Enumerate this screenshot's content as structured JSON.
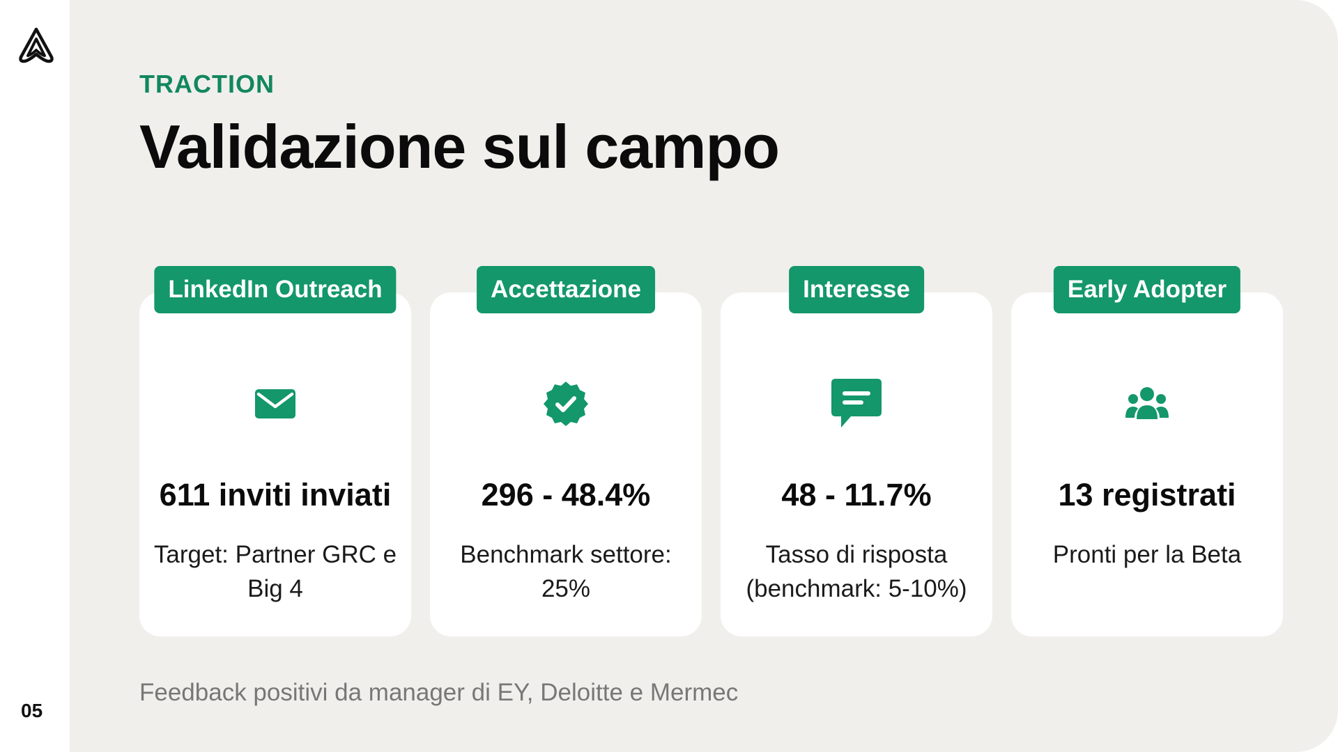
{
  "page": {
    "number": "05",
    "eyebrow": "TRACTION",
    "title": "Validazione sul campo",
    "footer": "Feedback positivi da manager di EY, Deloitte e Mermec"
  },
  "colors": {
    "accent": "#13976b",
    "eyebrow": "#12875f",
    "panel_bg": "#f0efeb",
    "card_bg": "#ffffff"
  },
  "cards": [
    {
      "badge": "LinkedIn Outreach",
      "icon": "envelope-icon",
      "metric": "611 inviti inviati",
      "description": "Target: Partner GRC e Big 4"
    },
    {
      "badge": "Accettazione",
      "icon": "verified-badge-icon",
      "metric": "296 - 48.4%",
      "description": "Benchmark settore: 25%"
    },
    {
      "badge": "Interesse",
      "icon": "chat-bubble-icon",
      "metric": "48 - 11.7%",
      "description": "Tasso di risposta (benchmark: 5-10%)"
    },
    {
      "badge": "Early Adopter",
      "icon": "users-icon",
      "metric": "13 registrati",
      "description": "Pronti per la Beta"
    }
  ]
}
